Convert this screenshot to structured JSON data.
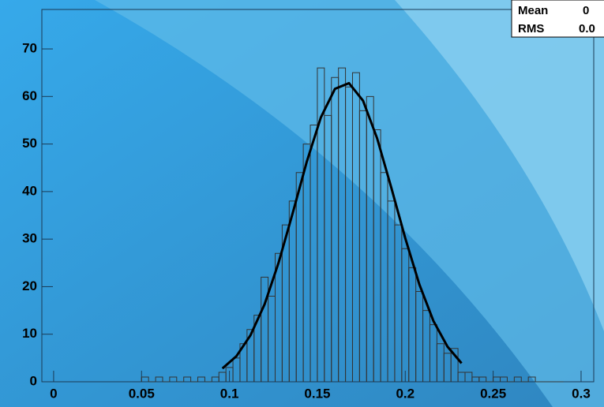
{
  "chart_data": {
    "type": "histogram",
    "bins": [
      0.05,
      0.054,
      0.058,
      0.062,
      0.066,
      0.07,
      0.074,
      0.078,
      0.082,
      0.086,
      0.09,
      0.094,
      0.098,
      0.102,
      0.106,
      0.11,
      0.114,
      0.118,
      0.122,
      0.126,
      0.13,
      0.134,
      0.138,
      0.142,
      0.146,
      0.15,
      0.154,
      0.158,
      0.162,
      0.166,
      0.17,
      0.174,
      0.178,
      0.182,
      0.186,
      0.19,
      0.194,
      0.198,
      0.202,
      0.206,
      0.21,
      0.214,
      0.218,
      0.222,
      0.226,
      0.23,
      0.234,
      0.238,
      0.242,
      0.246,
      0.25,
      0.254,
      0.258,
      0.262,
      0.266,
      0.27,
      0.274,
      0.278,
      0.282,
      0.286,
      0.29
    ],
    "counts": [
      1,
      0,
      1,
      0,
      1,
      0,
      1,
      0,
      1,
      0,
      1,
      2,
      3,
      5,
      8,
      11,
      14,
      22,
      18,
      27,
      33,
      38,
      44,
      50,
      54,
      66,
      56,
      64,
      66,
      62,
      65,
      57,
      60,
      53,
      44,
      38,
      33,
      28,
      24,
      19,
      15,
      12,
      8,
      6,
      7,
      2,
      2,
      1,
      1,
      0,
      1,
      1,
      0,
      1,
      0,
      1,
      0,
      0,
      0,
      0
    ],
    "color": "#333333",
    "fit": {
      "x": [
        0.096,
        0.104,
        0.112,
        0.12,
        0.128,
        0.136,
        0.144,
        0.152,
        0.16,
        0.168,
        0.176,
        0.184,
        0.192,
        0.2,
        0.208,
        0.216,
        0.224,
        0.232
      ],
      "values": [
        2.8,
        5.4,
        9.8,
        16.3,
        25.1,
        35.5,
        46.3,
        55.6,
        61.6,
        62.8,
        59.1,
        51.2,
        40.9,
        30.2,
        20.5,
        12.8,
        7.4,
        3.9
      ],
      "color": "#000000"
    },
    "xlim": [
      -0.0067,
      0.3072
    ],
    "ylim": [
      0,
      78.3
    ],
    "xticks": [
      0,
      0.05,
      0.1,
      0.15,
      0.2,
      0.25,
      0.3
    ],
    "yticks": [
      0,
      10,
      20,
      30,
      40,
      50,
      60,
      70
    ],
    "stats": [
      {
        "label": "Mean",
        "value": "0"
      },
      {
        "label": "RMS",
        "value": "0.0"
      }
    ]
  }
}
